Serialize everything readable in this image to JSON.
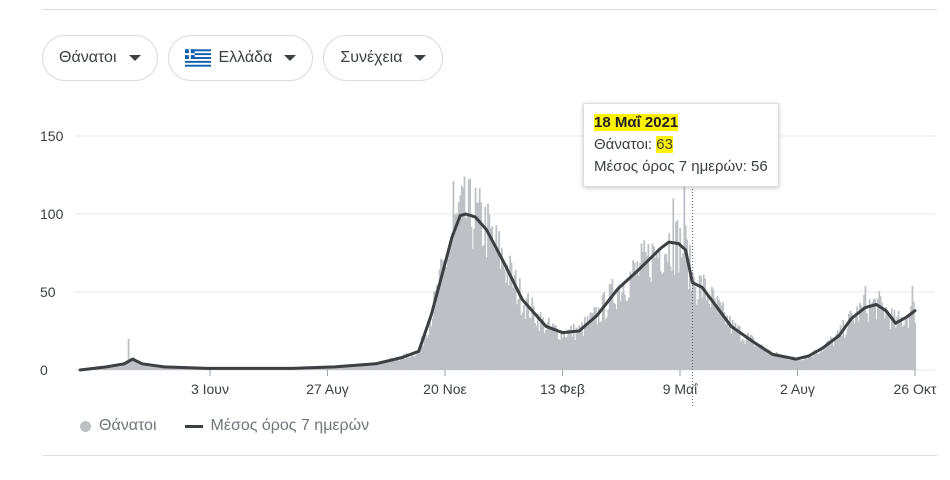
{
  "filters": [
    {
      "label": "Θάνατοι"
    },
    {
      "label": "Ελλάδα"
    },
    {
      "label": "Συνέχεια"
    }
  ],
  "tooltip": {
    "date": "18 Μαΐ 2021",
    "metric_label": "Θάνατοι: ",
    "metric_value": "63",
    "avg_label": "Μέσος όρος 7 ημερών: 56"
  },
  "legend": {
    "bars": "Θάνατοι",
    "line": "Μέσος όρος 7 ημερών"
  },
  "colors": {
    "bars": "#bdc1c6",
    "line": "#3c4043",
    "grid": "#e8eaed",
    "highlight": "#fff200"
  },
  "chart_data": {
    "type": "bar",
    "title": "",
    "xlabel": "",
    "ylabel": "",
    "ylim": [
      0,
      160
    ],
    "yticks": [
      0,
      50,
      100,
      150
    ],
    "grid": true,
    "legend_position": "bottom-left",
    "x_tick_labels": [
      "3 Ιουν",
      "27 Αυγ",
      "20 Νοε",
      "13 Φεβ",
      "9 Μαΐ",
      "2 Αυγ",
      "26 Οκτ"
    ],
    "start_date": "2020-03-01",
    "end_date": "2021-10-26",
    "highlight_date": "2021-05-18",
    "series": [
      {
        "name": "Μέσος όρος 7 ημερών",
        "kind": "line",
        "points": [
          [
            "2020-03-01",
            0
          ],
          [
            "2020-03-20",
            2
          ],
          [
            "2020-04-02",
            4
          ],
          [
            "2020-04-08",
            7
          ],
          [
            "2020-04-15",
            4
          ],
          [
            "2020-05-01",
            2
          ],
          [
            "2020-06-01",
            1
          ],
          [
            "2020-07-01",
            1
          ],
          [
            "2020-08-01",
            1
          ],
          [
            "2020-09-01",
            2
          ],
          [
            "2020-10-01",
            4
          ],
          [
            "2020-10-20",
            8
          ],
          [
            "2020-11-01",
            12
          ],
          [
            "2020-11-10",
            35
          ],
          [
            "2020-11-17",
            58
          ],
          [
            "2020-11-25",
            85
          ],
          [
            "2020-12-01",
            99
          ],
          [
            "2020-12-05",
            100
          ],
          [
            "2020-12-12",
            98
          ],
          [
            "2020-12-20",
            90
          ],
          [
            "2021-01-01",
            70
          ],
          [
            "2021-01-15",
            45
          ],
          [
            "2021-02-01",
            28
          ],
          [
            "2021-02-13",
            24
          ],
          [
            "2021-02-25",
            25
          ],
          [
            "2021-03-10",
            35
          ],
          [
            "2021-03-25",
            52
          ],
          [
            "2021-04-10",
            65
          ],
          [
            "2021-04-25",
            78
          ],
          [
            "2021-05-01",
            82
          ],
          [
            "2021-05-08",
            81
          ],
          [
            "2021-05-13",
            77
          ],
          [
            "2021-05-18",
            56
          ],
          [
            "2021-05-25",
            53
          ],
          [
            "2021-06-05",
            40
          ],
          [
            "2021-06-15",
            28
          ],
          [
            "2021-07-01",
            18
          ],
          [
            "2021-07-15",
            10
          ],
          [
            "2021-08-01",
            7
          ],
          [
            "2021-08-10",
            9
          ],
          [
            "2021-08-20",
            14
          ],
          [
            "2021-09-01",
            22
          ],
          [
            "2021-09-10",
            33
          ],
          [
            "2021-09-20",
            40
          ],
          [
            "2021-09-28",
            42
          ],
          [
            "2021-10-05",
            38
          ],
          [
            "2021-10-12",
            30
          ],
          [
            "2021-10-20",
            34
          ],
          [
            "2021-10-26",
            38
          ]
        ]
      },
      {
        "name": "Θάνατοι",
        "kind": "bar",
        "spikes": [
          [
            "2020-04-05",
            20
          ],
          [
            "2020-11-26",
            121
          ],
          [
            "2020-12-01",
            112
          ],
          [
            "2021-05-04",
            110
          ],
          [
            "2021-05-12",
            118
          ],
          [
            "2021-05-18",
            63
          ],
          [
            "2021-09-20",
            54
          ],
          [
            "2021-10-24",
            54
          ]
        ]
      }
    ]
  }
}
